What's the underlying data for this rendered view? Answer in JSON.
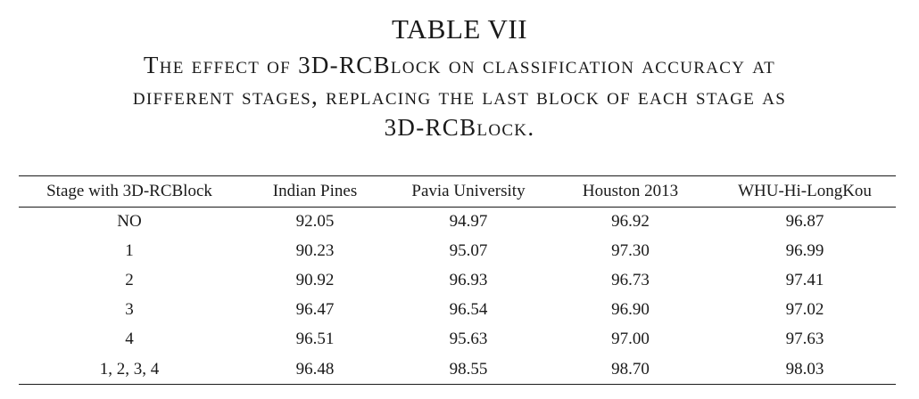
{
  "table": {
    "number": "TABLE VII",
    "caption_lines": [
      "The effect of 3D-RCBlock on classification accuracy at",
      "different stages, replacing the last block of each stage as",
      "3D-RCBlock."
    ],
    "headers": [
      "Stage with 3D-RCBlock",
      "Indian Pines",
      "Pavia University",
      "Houston 2013",
      "WHU-Hi-LongKou"
    ],
    "rows": [
      [
        "NO",
        "92.05",
        "94.97",
        "96.92",
        "96.87"
      ],
      [
        "1",
        "90.23",
        "95.07",
        "97.30",
        "96.99"
      ],
      [
        "2",
        "90.92",
        "96.93",
        "96.73",
        "97.41"
      ],
      [
        "3",
        "96.47",
        "96.54",
        "96.90",
        "97.02"
      ],
      [
        "4",
        "96.51",
        "95.63",
        "97.00",
        "97.63"
      ],
      [
        "1, 2, 3, 4",
        "96.48",
        "98.55",
        "98.70",
        "98.03"
      ]
    ]
  }
}
